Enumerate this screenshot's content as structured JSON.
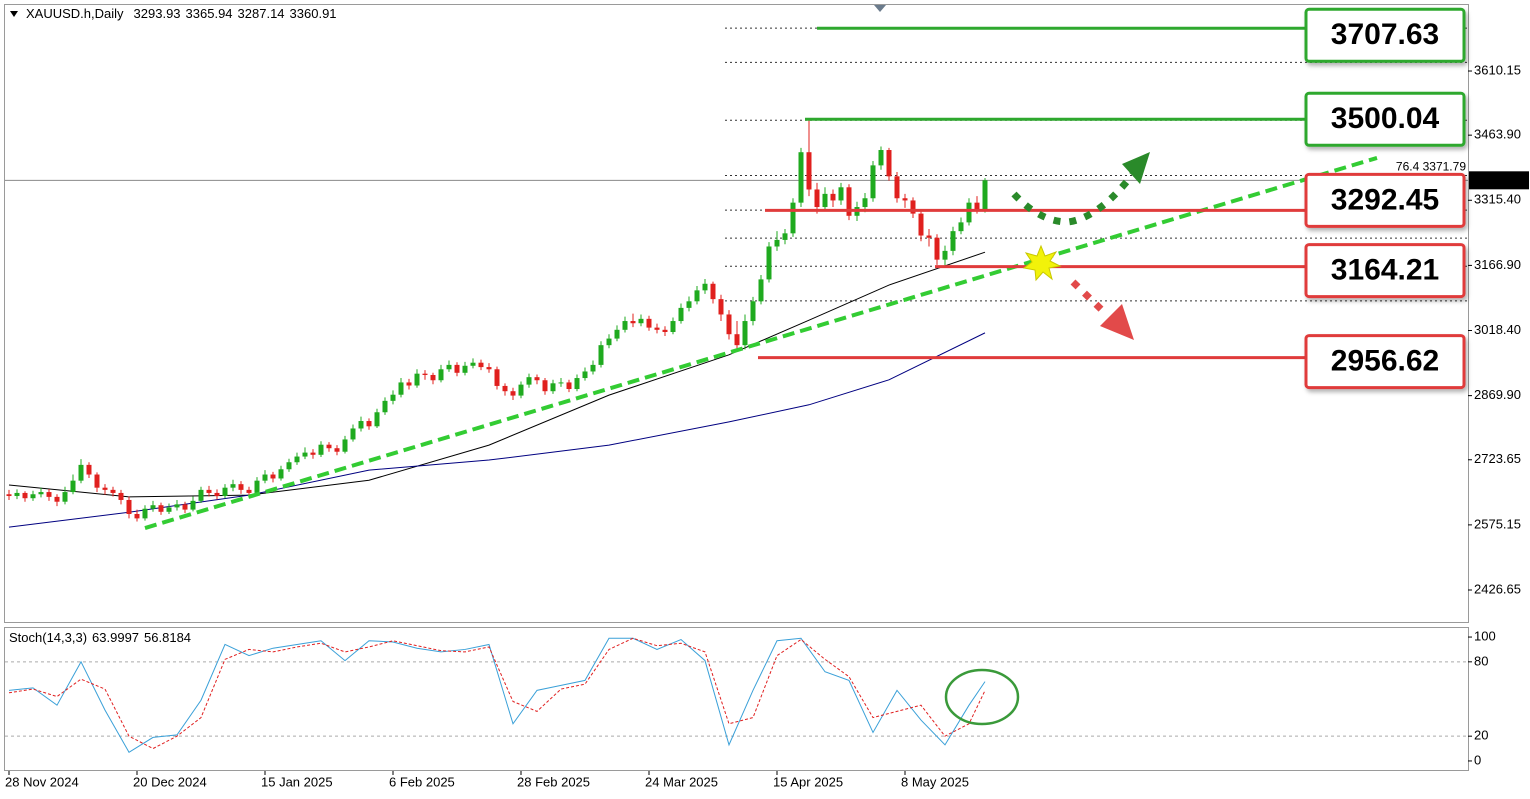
{
  "chart_data": {
    "type": "candlestick",
    "symbol": "XAUUSD.h,Daily",
    "up_color": "#1faa1f",
    "down_color": "#e0201e",
    "categories": [
      "28 Nov 2024",
      null,
      null,
      null,
      null,
      null,
      null,
      null,
      null,
      null,
      null,
      null,
      null,
      null,
      null,
      null,
      "20 Dec 2024",
      null,
      null,
      null,
      null,
      null,
      null,
      null,
      null,
      null,
      null,
      null,
      null,
      null,
      null,
      null,
      "15 Jan 2025",
      null,
      null,
      null,
      null,
      null,
      null,
      null,
      null,
      null,
      null,
      null,
      null,
      null,
      null,
      null,
      "6 Feb 2025",
      null,
      null,
      null,
      null,
      null,
      null,
      null,
      null,
      null,
      null,
      null,
      null,
      null,
      null,
      null,
      "28 Feb 2025",
      null,
      null,
      null,
      null,
      null,
      null,
      null,
      null,
      null,
      null,
      null,
      null,
      null,
      null,
      null,
      "24 Mar 2025",
      null,
      null,
      null,
      null,
      null,
      null,
      null,
      null,
      null,
      null,
      null,
      null,
      null,
      null,
      null,
      "15 Apr 2025",
      null,
      null,
      null,
      null,
      null,
      null,
      null,
      null,
      null,
      null,
      null,
      null,
      null,
      null,
      null,
      "8 May 2025",
      null,
      null,
      null,
      null,
      null,
      null,
      null,
      null,
      null,
      null
    ],
    "open": [
      2645,
      2641,
      2648,
      2636,
      2645,
      2650,
      2639,
      2628,
      2650,
      2676,
      2712,
      2690,
      2660,
      2655,
      2648,
      2632,
      2600,
      2590,
      2612,
      2620,
      2605,
      2615,
      2622,
      2610,
      2630,
      2655,
      2648,
      2641,
      2660,
      2668,
      2655,
      2648,
      2676,
      2690,
      2681,
      2702,
      2718,
      2731,
      2740,
      2735,
      2758,
      2750,
      2742,
      2770,
      2795,
      2812,
      2800,
      2832,
      2858,
      2872,
      2900,
      2893,
      2920,
      2917,
      2905,
      2930,
      2940,
      2922,
      2938,
      2945,
      2935,
      2930,
      2892,
      2880,
      2870,
      2895,
      2912,
      2905,
      2880,
      2898,
      2900,
      2885,
      2910,
      2925,
      2940,
      2985,
      3000,
      3020,
      3040,
      3035,
      3045,
      3025,
      3020,
      3015,
      3040,
      3070,
      3085,
      3110,
      3125,
      3090,
      3055,
      3010,
      2985,
      3040,
      3085,
      3135,
      3210,
      3225,
      3240,
      3310,
      3425,
      3340,
      3300,
      3330,
      3315,
      3345,
      3280,
      3300,
      3320,
      3395,
      3430,
      3370,
      3320,
      3315,
      3285,
      3235,
      3230,
      3180,
      3200,
      3245,
      3265,
      3310,
      3293.93
    ],
    "high": [
      2655,
      2656,
      2652,
      2653,
      2660,
      2657,
      2645,
      2662,
      2690,
      2725,
      2718,
      2695,
      2668,
      2662,
      2655,
      2640,
      2610,
      2620,
      2630,
      2626,
      2624,
      2632,
      2628,
      2640,
      2662,
      2664,
      2656,
      2668,
      2678,
      2675,
      2662,
      2684,
      2700,
      2696,
      2710,
      2726,
      2740,
      2752,
      2748,
      2766,
      2764,
      2757,
      2778,
      2804,
      2822,
      2818,
      2840,
      2866,
      2882,
      2910,
      2908,
      2930,
      2928,
      2922,
      2940,
      2950,
      2946,
      2947,
      2955,
      2952,
      2944,
      2936,
      2898,
      2888,
      2902,
      2920,
      2918,
      2910,
      2906,
      2910,
      2906,
      2918,
      2934,
      2950,
      2994,
      3010,
      3030,
      3050,
      3057,
      3055,
      3052,
      3034,
      3028,
      3048,
      3080,
      3096,
      3120,
      3136,
      3130,
      3100,
      3065,
      3040,
      3055,
      3095,
      3145,
      3220,
      3245,
      3250,
      3320,
      3435,
      3500,
      3355,
      3345,
      3340,
      3355,
      3352,
      3312,
      3332,
      3405,
      3438,
      3435,
      3380,
      3330,
      3322,
      3292,
      3250,
      3238,
      3212,
      3255,
      3276,
      3320,
      3325,
      3365.94
    ],
    "low": [
      2632,
      2634,
      2628,
      2630,
      2638,
      2630,
      2618,
      2622,
      2645,
      2670,
      2682,
      2650,
      2644,
      2640,
      2622,
      2590,
      2583,
      2585,
      2605,
      2598,
      2600,
      2608,
      2602,
      2606,
      2625,
      2640,
      2633,
      2636,
      2652,
      2646,
      2640,
      2644,
      2670,
      2672,
      2676,
      2696,
      2712,
      2725,
      2726,
      2730,
      2742,
      2734,
      2738,
      2765,
      2788,
      2792,
      2796,
      2826,
      2850,
      2866,
      2884,
      2888,
      2906,
      2896,
      2900,
      2924,
      2914,
      2916,
      2932,
      2928,
      2922,
      2884,
      2870,
      2860,
      2864,
      2888,
      2896,
      2872,
      2874,
      2890,
      2878,
      2880,
      2904,
      2918,
      2934,
      2978,
      2994,
      3014,
      3026,
      3028,
      3018,
      3012,
      3006,
      3010,
      3034,
      3062,
      3078,
      3102,
      3080,
      3040,
      2998,
      2970,
      2975,
      3030,
      3078,
      3128,
      3200,
      3215,
      3232,
      3300,
      3325,
      3285,
      3290,
      3300,
      3305,
      3270,
      3268,
      3288,
      3312,
      3385,
      3360,
      3310,
      3298,
      3275,
      3222,
      3210,
      3168,
      3165,
      3190,
      3238,
      3258,
      3285,
      3287.14
    ],
    "close": [
      2641,
      2648,
      2636,
      2645,
      2650,
      2639,
      2628,
      2650,
      2676,
      2712,
      2690,
      2660,
      2655,
      2648,
      2632,
      2600,
      2590,
      2612,
      2620,
      2605,
      2615,
      2622,
      2610,
      2630,
      2655,
      2648,
      2641,
      2660,
      2668,
      2655,
      2648,
      2676,
      2690,
      2681,
      2702,
      2718,
      2731,
      2740,
      2735,
      2758,
      2750,
      2742,
      2770,
      2795,
      2812,
      2800,
      2832,
      2858,
      2872,
      2900,
      2893,
      2920,
      2917,
      2905,
      2930,
      2940,
      2922,
      2938,
      2945,
      2935,
      2930,
      2892,
      2880,
      2870,
      2895,
      2912,
      2905,
      2880,
      2898,
      2900,
      2885,
      2910,
      2925,
      2940,
      2985,
      3000,
      3020,
      3040,
      3035,
      3045,
      3025,
      3020,
      3015,
      3040,
      3070,
      3085,
      3110,
      3125,
      3090,
      3055,
      3010,
      2985,
      3040,
      3085,
      3135,
      3210,
      3225,
      3240,
      3310,
      3425,
      3340,
      3300,
      3330,
      3315,
      3345,
      3280,
      3300,
      3320,
      3395,
      3430,
      3370,
      3320,
      3315,
      3285,
      3235,
      3230,
      3180,
      3200,
      3245,
      3265,
      3310,
      3293.93,
      3360.91
    ],
    "ylim": [
      2353.7,
      3760.7
    ],
    "yticks": [
      3610.15,
      {
        "value": 3463.9,
        "label": "3463.90"
      },
      {
        "value": 3315.4,
        "label": "3315.40"
      },
      {
        "value": 3166.9,
        "label": "3166.90"
      },
      {
        "value": 3018.4,
        "label": "3018.40"
      },
      {
        "value": 2869.9,
        "label": "2869.90"
      },
      2723.65,
      2575.15,
      2426.65
    ],
    "moving_averages": [
      {
        "color": "#000000",
        "x": [
          0,
          15,
          30,
          45,
          60,
          75,
          90,
          100,
          110,
          122
        ],
        "values": [
          2666,
          2639,
          2643,
          2677,
          2757,
          2871,
          2963,
          3042,
          3122,
          3197
        ]
      },
      {
        "color": "#000080",
        "x": [
          0,
          15,
          30,
          45,
          60,
          75,
          90,
          100,
          110,
          122
        ],
        "values": [
          2570,
          2604,
          2643,
          2700,
          2723,
          2757,
          2810,
          2849,
          2906,
          3013
        ]
      }
    ],
    "trendline": {
      "color": "#33cc33",
      "x": [
        17,
        171
      ],
      "values": [
        2568,
        3412
      ]
    },
    "fib_levels": [
      3708,
      3630,
      3498,
      {
        "value": 3371.79,
        "label": "76.4 3371.79"
      },
      3293,
      3229,
      3165,
      3086
    ],
    "levels": [
      {
        "value": 3707.63,
        "color": "#2ea82e"
      },
      {
        "value": 3500.04,
        "color": "#2ea82e"
      },
      {
        "value": 3292.45,
        "color": "#e03b3b"
      },
      {
        "value": 3164.21,
        "color": "#e03b3b"
      },
      {
        "value": 2956.62,
        "color": "#e03b3b"
      }
    ],
    "stochastic": {
      "label": "Stoch(14,3,3)",
      "ylim": [
        -7.3,
        107.3
      ],
      "yticks": [
        100,
        80,
        20,
        0
      ],
      "levels": [
        80,
        20
      ],
      "x": [
        0,
        3,
        6,
        9,
        12,
        15,
        18,
        21,
        24,
        27,
        30,
        33,
        36,
        39,
        42,
        45,
        48,
        51,
        54,
        57,
        60,
        63,
        66,
        69,
        72,
        75,
        78,
        81,
        84,
        87,
        90,
        93,
        96,
        99,
        102,
        105,
        108,
        111,
        114,
        117,
        120,
        122
      ],
      "main": {
        "color": "#3aa0d8",
        "values": [
          57,
          59,
          45,
          80,
          41,
          7,
          19,
          21,
          49,
          94,
          85,
          91,
          94,
          97,
          81,
          97,
          96,
          91,
          88,
          90,
          94,
          30,
          57,
          61,
          65,
          99,
          99,
          90,
          98,
          81,
          13,
          57,
          97,
          99,
          72,
          65,
          23,
          57,
          33,
          13,
          45,
          63.9997
        ]
      },
      "signal": {
        "color": "#e02020",
        "values": [
          55,
          58,
          52,
          66,
          58,
          20,
          10,
          20,
          35,
          82,
          90,
          88,
          92,
          95,
          88,
          92,
          97,
          93,
          89,
          88,
          92,
          48,
          40,
          58,
          62,
          90,
          99,
          93,
          95,
          88,
          30,
          35,
          85,
          98,
          82,
          68,
          35,
          40,
          45,
          20,
          30,
          56.8184
        ]
      }
    }
  }
}
